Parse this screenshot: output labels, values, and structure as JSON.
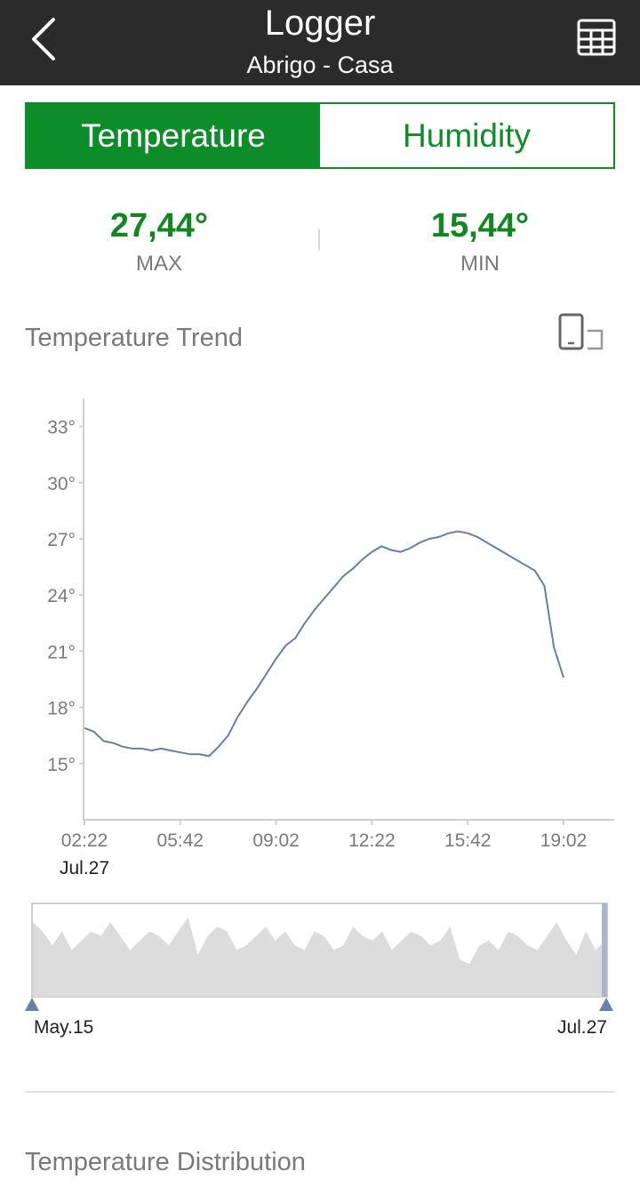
{
  "header": {
    "title": "Logger",
    "subtitle": "Abrigo - Casa",
    "back_icon": "chevron-left-icon",
    "table_icon": "table-grid-icon"
  },
  "tabs": [
    {
      "label": "Temperature",
      "active": true
    },
    {
      "label": "Humidity",
      "active": false
    }
  ],
  "stats": {
    "max": {
      "value": "27,44°",
      "label": "MAX"
    },
    "min": {
      "value": "15,44°",
      "label": "MIN"
    }
  },
  "trend": {
    "title": "Temperature Trend",
    "rotate_icon": "rotate-screen-icon"
  },
  "chart_data": {
    "type": "line",
    "y_ticks": [
      "33°",
      "30°",
      "27°",
      "24°",
      "21°",
      "18°",
      "15°"
    ],
    "ylim": [
      12,
      34.5
    ],
    "x_ticks": [
      "02:22",
      "05:42",
      "09:02",
      "12:22",
      "15:42",
      "19:02"
    ],
    "x_start_date": "Jul.27",
    "x": [
      "02:22",
      "02:42",
      "03:02",
      "03:22",
      "03:42",
      "04:02",
      "04:22",
      "04:42",
      "05:02",
      "05:22",
      "05:42",
      "06:02",
      "06:22",
      "06:42",
      "07:02",
      "07:22",
      "07:42",
      "08:02",
      "08:22",
      "08:42",
      "09:02",
      "09:22",
      "09:42",
      "10:02",
      "10:22",
      "10:42",
      "11:02",
      "11:22",
      "11:42",
      "12:02",
      "12:22",
      "12:42",
      "13:02",
      "13:22",
      "13:42",
      "14:02",
      "14:22",
      "14:42",
      "15:02",
      "15:22",
      "15:42",
      "16:02",
      "16:22",
      "16:42",
      "17:02",
      "17:22",
      "17:42",
      "18:02",
      "18:22",
      "18:42",
      "19:02"
    ],
    "values": [
      16.9,
      16.7,
      16.2,
      16.1,
      15.9,
      15.8,
      15.8,
      15.7,
      15.8,
      15.7,
      15.6,
      15.5,
      15.5,
      15.4,
      15.9,
      16.5,
      17.5,
      18.3,
      19.0,
      19.8,
      20.6,
      21.3,
      21.7,
      22.5,
      23.2,
      23.8,
      24.4,
      25.0,
      25.4,
      25.9,
      26.3,
      26.6,
      26.4,
      26.3,
      26.5,
      26.8,
      27.0,
      27.1,
      27.3,
      27.4,
      27.3,
      27.1,
      26.8,
      26.5,
      26.2,
      25.9,
      25.6,
      25.3,
      24.5,
      21.2,
      19.6
    ]
  },
  "range_brush": {
    "start_label": "May.15",
    "end_label": "Jul.27",
    "overview_values": [
      26,
      24,
      21,
      24,
      20,
      22,
      24,
      23,
      26,
      23,
      20,
      22,
      24,
      23,
      21,
      24,
      27,
      19,
      23,
      25,
      24,
      20,
      21,
      23,
      25,
      22,
      24,
      21,
      20,
      24,
      23,
      20,
      21,
      25,
      23,
      22,
      24,
      20,
      22,
      24,
      23,
      21,
      22,
      25,
      18,
      17,
      21,
      22,
      20,
      24,
      23,
      21,
      20,
      23,
      26,
      22,
      19,
      24,
      20,
      22
    ]
  },
  "distribution": {
    "title": "Temperature Distribution"
  },
  "colors": {
    "accent": "#0d8c2a",
    "header_bg": "#2b2b2b",
    "line": "#6a7fa0",
    "brush_fill": "#dcdcdc",
    "brush_handle": "#6b7fa8"
  }
}
